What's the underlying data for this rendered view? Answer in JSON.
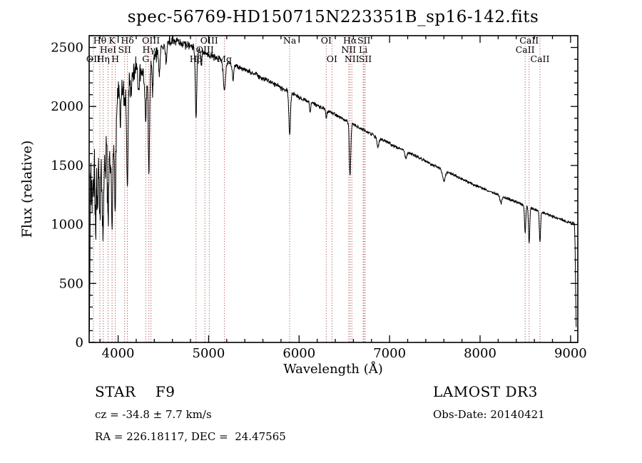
{
  "title": "spec-56769-HD150715N223351B_sp16-142.fits",
  "chart_data": {
    "type": "line",
    "title": "spec-56769-HD150715N223351B_sp16-142.fits",
    "xlabel": "Wavelength (Å)",
    "ylabel": "Flux (relative)",
    "xlim": [
      3680,
      9080
    ],
    "ylim": [
      0,
      2600
    ],
    "x_ticks": [
      4000,
      5000,
      6000,
      7000,
      8000,
      9000
    ],
    "y_ticks": [
      0,
      500,
      1000,
      1500,
      2000,
      2500
    ],
    "x_minor_step": 200,
    "y_minor_step": 100,
    "grid": false,
    "line_color": "#000000",
    "marker_color": "#a03434",
    "continuum": [
      [
        3682,
        150
      ],
      [
        3695,
        1500
      ],
      [
        3720,
        1560
      ],
      [
        3760,
        1560
      ],
      [
        3800,
        1680
      ],
      [
        3850,
        1650
      ],
      [
        3900,
        1800
      ],
      [
        3950,
        1900
      ],
      [
        4000,
        2120
      ],
      [
        4060,
        2180
      ],
      [
        4120,
        2240
      ],
      [
        4200,
        2320
      ],
      [
        4260,
        2290
      ],
      [
        4320,
        2340
      ],
      [
        4400,
        2430
      ],
      [
        4500,
        2500
      ],
      [
        4560,
        2545
      ],
      [
        4650,
        2555
      ],
      [
        4750,
        2520
      ],
      [
        4850,
        2490
      ],
      [
        4950,
        2450
      ],
      [
        5050,
        2420
      ],
      [
        5150,
        2390
      ],
      [
        5250,
        2360
      ],
      [
        5350,
        2330
      ],
      [
        5450,
        2300
      ],
      [
        5550,
        2260
      ],
      [
        5650,
        2220
      ],
      [
        5750,
        2180
      ],
      [
        5850,
        2140
      ],
      [
        5950,
        2100
      ],
      [
        6050,
        2060
      ],
      [
        6150,
        2030
      ],
      [
        6250,
        1990
      ],
      [
        6350,
        1950
      ],
      [
        6450,
        1910
      ],
      [
        6550,
        1865
      ],
      [
        6650,
        1825
      ],
      [
        6750,
        1785
      ],
      [
        6850,
        1745
      ],
      [
        6950,
        1705
      ],
      [
        7050,
        1665
      ],
      [
        7150,
        1630
      ],
      [
        7250,
        1595
      ],
      [
        7350,
        1555
      ],
      [
        7450,
        1515
      ],
      [
        7550,
        1475
      ],
      [
        7650,
        1440
      ],
      [
        7750,
        1405
      ],
      [
        7850,
        1365
      ],
      [
        7950,
        1330
      ],
      [
        8050,
        1300
      ],
      [
        8150,
        1265
      ],
      [
        8250,
        1235
      ],
      [
        8350,
        1205
      ],
      [
        8450,
        1175
      ],
      [
        8550,
        1145
      ],
      [
        8650,
        1115
      ],
      [
        8750,
        1085
      ],
      [
        8850,
        1055
      ],
      [
        8950,
        1025
      ],
      [
        9045,
        1005
      ]
    ],
    "absorption_features": [
      [
        3712,
        350,
        6
      ],
      [
        3727,
        320,
        5
      ],
      [
        3750,
        560,
        6
      ],
      [
        3771,
        520,
        6
      ],
      [
        3798,
        680,
        7
      ],
      [
        3820,
        300,
        5
      ],
      [
        3835,
        780,
        7
      ],
      [
        3860,
        260,
        5
      ],
      [
        3889,
        720,
        7
      ],
      [
        3910,
        300,
        5
      ],
      [
        3933,
        980,
        8
      ],
      [
        3968,
        880,
        8
      ],
      [
        4026,
        260,
        6
      ],
      [
        4072,
        220,
        6
      ],
      [
        4102,
        900,
        8
      ],
      [
        4144,
        220,
        6
      ],
      [
        4226,
        260,
        6
      ],
      [
        4305,
        400,
        10
      ],
      [
        4340,
        930,
        8
      ],
      [
        4383,
        280,
        6
      ],
      [
        4455,
        200,
        6
      ],
      [
        4530,
        160,
        6
      ],
      [
        4861,
        590,
        8
      ],
      [
        4920,
        130,
        6
      ],
      [
        5175,
        250,
        12
      ],
      [
        5270,
        130,
        8
      ],
      [
        5896,
        350,
        9
      ],
      [
        6122,
        90,
        6
      ],
      [
        6300,
        70,
        6
      ],
      [
        6563,
        440,
        8
      ],
      [
        6870,
        80,
        10
      ],
      [
        7180,
        60,
        10
      ],
      [
        7600,
        90,
        14
      ],
      [
        8230,
        60,
        10
      ],
      [
        8498,
        230,
        7
      ],
      [
        8542,
        300,
        7
      ],
      [
        8662,
        260,
        7
      ]
    ],
    "noise_profile": [
      [
        3682,
        300
      ],
      [
        3800,
        280
      ],
      [
        3900,
        240
      ],
      [
        4000,
        160
      ],
      [
        4150,
        110
      ],
      [
        4300,
        85
      ],
      [
        4500,
        60
      ],
      [
        4800,
        42
      ],
      [
        5200,
        30
      ],
      [
        5800,
        25
      ],
      [
        6500,
        20
      ],
      [
        7200,
        16
      ],
      [
        8000,
        14
      ],
      [
        9045,
        13
      ]
    ],
    "edge_drop": [
      [
        9050,
        820
      ],
      [
        9056,
        420
      ],
      [
        9062,
        130
      ]
    ],
    "spectral_lines": [
      {
        "wavelength": 3798,
        "label": "Hθ",
        "row": 1
      },
      {
        "wavelength": 3933,
        "label": "K",
        "row": 1
      },
      {
        "wavelength": 4102,
        "label": "Hδ",
        "row": 1
      },
      {
        "wavelength": 4363,
        "label": "OIII",
        "row": 1
      },
      {
        "wavelength": 5007,
        "label": "OIII",
        "row": 1
      },
      {
        "wavelength": 5896,
        "label": "Na",
        "row": 1
      },
      {
        "wavelength": 6300,
        "label": "OI",
        "row": 1
      },
      {
        "wavelength": 6563,
        "label": "Hα",
        "row": 1
      },
      {
        "wavelength": 6717,
        "label": "SII",
        "row": 1
      },
      {
        "wavelength": 8542,
        "label": "CaII",
        "row": 1
      },
      {
        "wavelength": 3889,
        "label": "HeI",
        "row": 2
      },
      {
        "wavelength": 4072,
        "label": "SII",
        "row": 2
      },
      {
        "wavelength": 4340,
        "label": "Hγ",
        "row": 2
      },
      {
        "wavelength": 4959,
        "label": "OIII",
        "row": 2
      },
      {
        "wavelength": 6548,
        "label": "NII",
        "row": 2
      },
      {
        "wavelength": 6708,
        "label": "Li",
        "row": 2
      },
      {
        "wavelength": 8498,
        "label": "CaII",
        "row": 2
      },
      {
        "wavelength": 3727,
        "label": "OII",
        "row": 3
      },
      {
        "wavelength": 3835,
        "label": "Hη",
        "row": 3
      },
      {
        "wavelength": 3968,
        "label": "H",
        "row": 3
      },
      {
        "wavelength": 4305,
        "label": "G",
        "row": 3
      },
      {
        "wavelength": 4861,
        "label": "Hβ",
        "row": 3
      },
      {
        "wavelength": 5175,
        "label": "Mg",
        "row": 3
      },
      {
        "wavelength": 6363,
        "label": "OI",
        "row": 3
      },
      {
        "wavelength": 6583,
        "label": "NII",
        "row": 3
      },
      {
        "wavelength": 6731,
        "label": "SII",
        "row": 3
      },
      {
        "wavelength": 8662,
        "label": "CaII",
        "row": 3
      }
    ]
  },
  "annotations": {
    "class_label": "STAR    F9",
    "survey": "LAMOST DR3",
    "cz": "cz = -34.8 ± 7.7 km/s",
    "obs_date": "Obs-Date: 20140421",
    "coords": "RA = 226.18117, DEC =  24.47565"
  }
}
